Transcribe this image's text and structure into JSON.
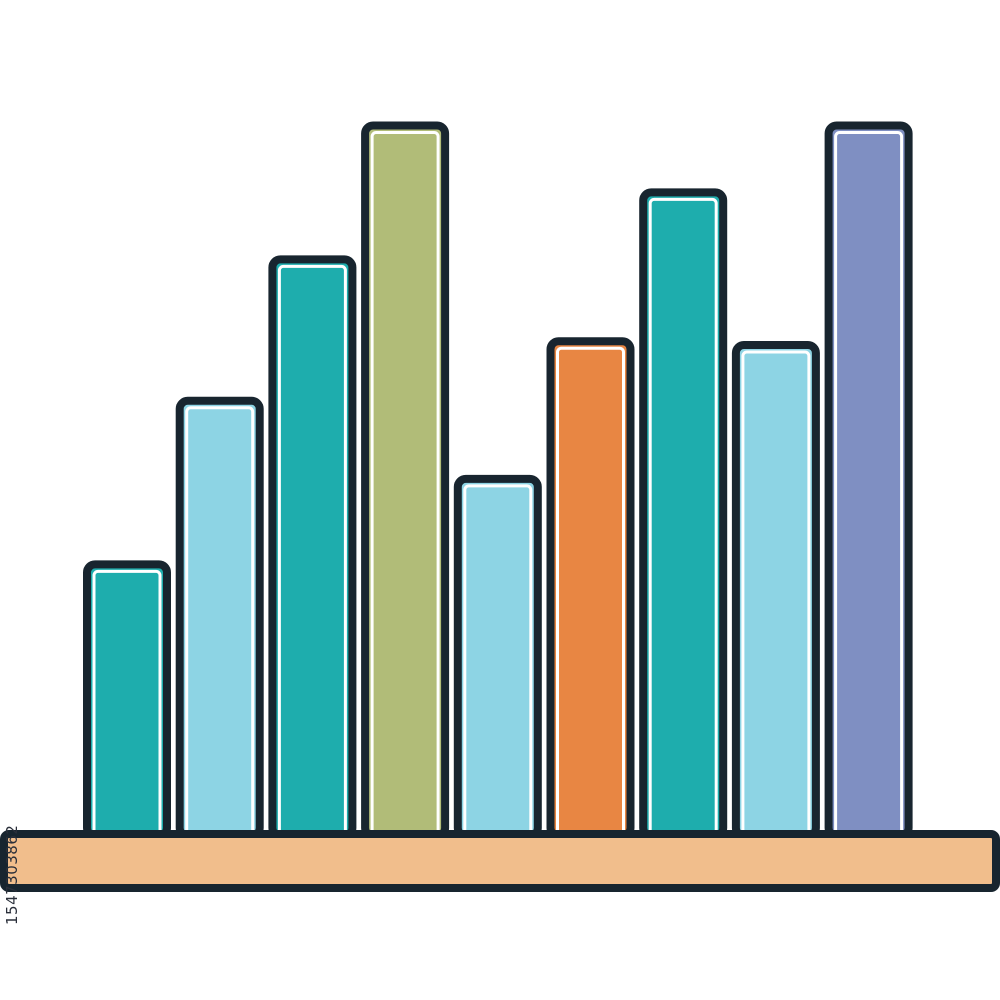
{
  "illustration": {
    "subject": "bar-chart-icon",
    "outline_color": "#18252f",
    "base_color": "#f1be8c",
    "bars": [
      {
        "level": 0.365,
        "color": "#1eadad"
      },
      {
        "level": 0.585,
        "color": "#8dd4e4"
      },
      {
        "level": 0.775,
        "color": "#1eadad"
      },
      {
        "level": 0.955,
        "color": "#b1bc78"
      },
      {
        "level": 0.48,
        "color": "#8dd4e4"
      },
      {
        "level": 0.665,
        "color": "#e88643"
      },
      {
        "level": 0.865,
        "color": "#1eadad"
      },
      {
        "level": 0.66,
        "color": "#8dd4e4"
      },
      {
        "level": 0.955,
        "color": "#7f8fc2"
      }
    ]
  },
  "watermark": {
    "stock_id": "1547303862"
  }
}
